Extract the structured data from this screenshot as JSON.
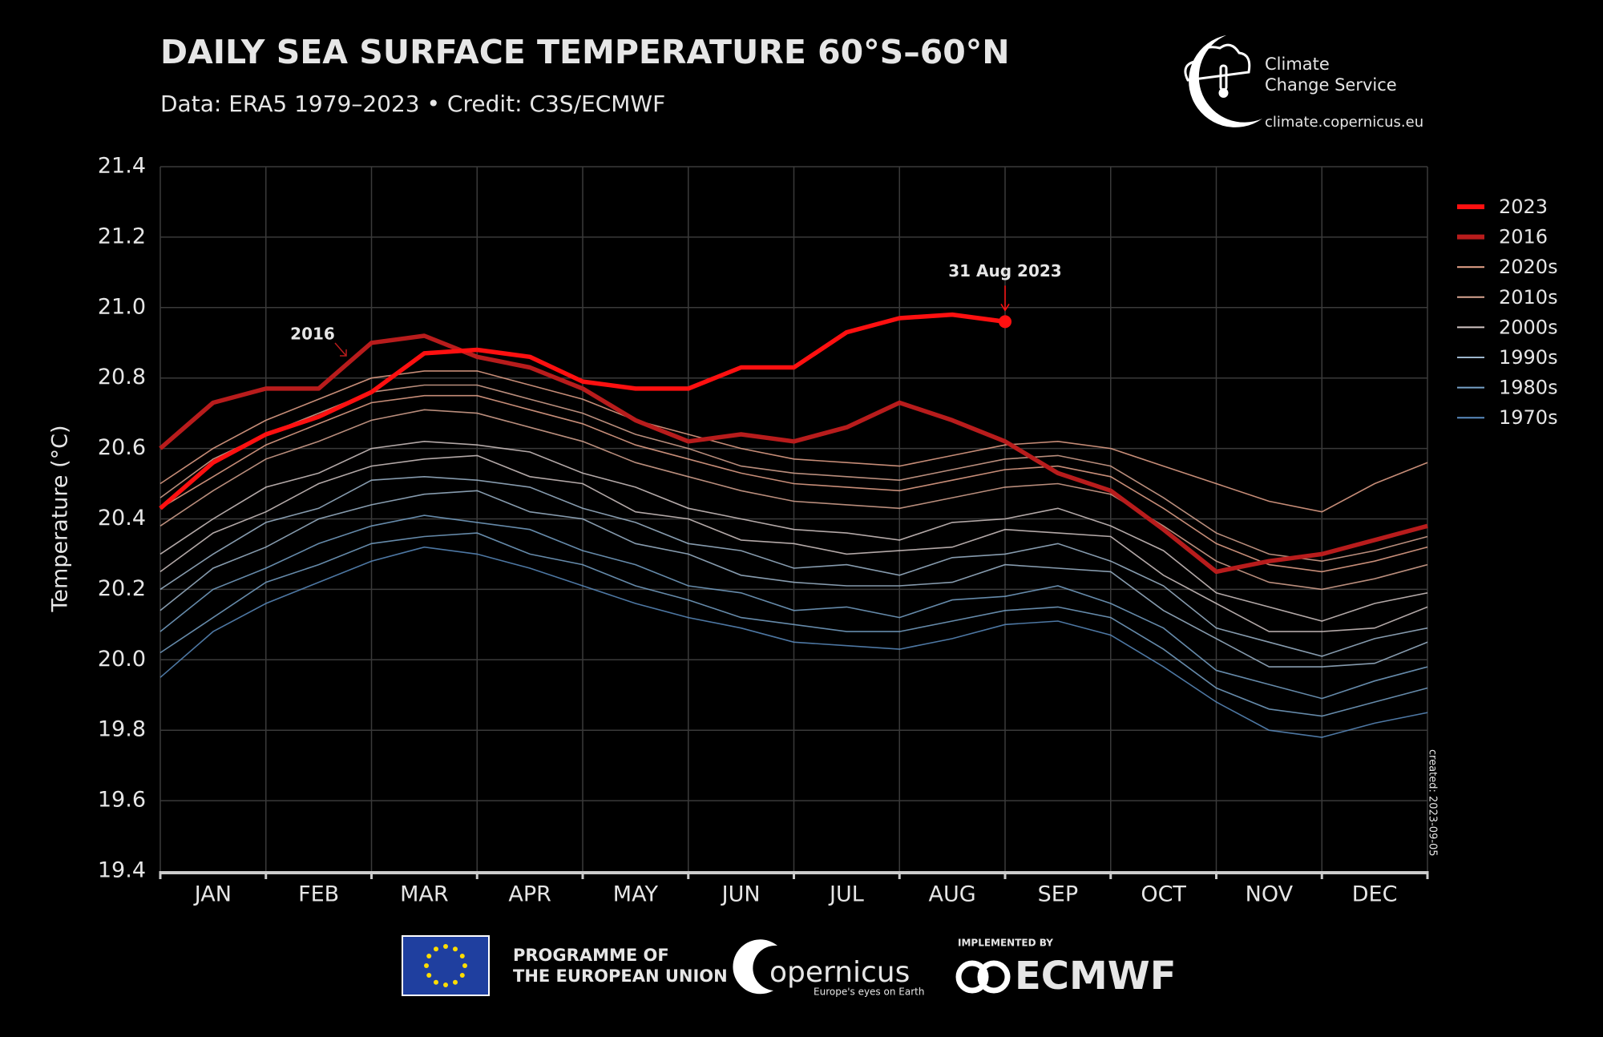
{
  "chart_data": {
    "type": "line",
    "title": "DAILY SEA SURFACE TEMPERATURE 60°S–60°N",
    "subtitle": "Data: ERA5 1979–2023 • Credit: C3S/ECMWF",
    "ylabel": "Temperature (°C)",
    "note": "created: 2023-09-05",
    "categories": [
      "JAN",
      "FEB",
      "MAR",
      "APR",
      "MAY",
      "JUN",
      "JUL",
      "AUG",
      "SEP",
      "OCT",
      "NOV",
      "DEC"
    ],
    "x": [
      0,
      0.5,
      1,
      1.5,
      2,
      2.5,
      3,
      3.5,
      4,
      4.5,
      5,
      5.5,
      6,
      6.5,
      7,
      7.5,
      8,
      8.5,
      9,
      9.5,
      10,
      10.5,
      11,
      11.5,
      12
    ],
    "xlim": [
      0,
      12
    ],
    "xticks": [
      0,
      1,
      2,
      3,
      4,
      5,
      6,
      7,
      8,
      9,
      10,
      11,
      12
    ],
    "ylim": [
      19.4,
      21.4
    ],
    "yticks": [
      19.4,
      19.6,
      19.8,
      {
        "value": 20,
        "label": "20.0"
      },
      20.2,
      20.4,
      20.6,
      20.8,
      {
        "value": 21,
        "label": "21.0"
      },
      21.2,
      21.4
    ],
    "grid": true,
    "legend": "right",
    "series": [
      {
        "name": "2023",
        "color": "#ff1010",
        "values": [
          20.43,
          20.56,
          20.64,
          20.69,
          20.76,
          20.87,
          20.88,
          20.86,
          20.79,
          20.77,
          20.77,
          20.83,
          20.83,
          20.93,
          20.97,
          20.98,
          20.96,
          null,
          null,
          null,
          null,
          null,
          null,
          null,
          null
        ]
      },
      {
        "name": "2016",
        "color": "#b81c1c",
        "values": [
          20.6,
          20.73,
          20.77,
          20.77,
          20.9,
          20.92,
          20.86,
          20.83,
          20.77,
          20.68,
          20.62,
          20.64,
          20.62,
          20.66,
          20.73,
          20.68,
          20.62,
          20.53,
          20.48,
          20.37,
          20.25,
          20.28,
          20.3,
          20.34,
          20.38
        ]
      },
      {
        "name": "2020s",
        "color": "#e9a58c",
        "lines": [
          [
            20.43,
            20.52,
            20.61,
            20.67,
            20.73,
            20.75,
            20.75,
            20.71,
            20.67,
            20.61,
            20.57,
            20.53,
            20.5,
            20.49,
            20.48,
            20.51,
            20.54,
            20.55,
            20.52,
            20.43,
            20.33,
            20.27,
            20.25,
            20.28,
            20.32
          ],
          [
            20.5,
            20.6,
            20.68,
            20.74,
            20.8,
            20.82,
            20.82,
            20.78,
            20.74,
            20.68,
            20.64,
            20.6,
            20.57,
            20.56,
            20.55,
            20.58,
            20.61,
            20.62,
            20.6,
            20.55,
            20.5,
            20.45,
            20.42,
            20.5,
            20.56
          ]
        ]
      },
      {
        "name": "2010s",
        "color": "#d9a692",
        "lines": [
          [
            20.38,
            20.48,
            20.57,
            20.62,
            20.68,
            20.71,
            20.7,
            20.66,
            20.62,
            20.56,
            20.52,
            20.48,
            20.45,
            20.44,
            20.43,
            20.46,
            20.49,
            20.5,
            20.47,
            20.38,
            20.28,
            20.22,
            20.2,
            20.23,
            20.27
          ],
          [
            20.46,
            20.57,
            20.64,
            20.7,
            20.76,
            20.78,
            20.78,
            20.74,
            20.7,
            20.64,
            20.6,
            20.55,
            20.53,
            20.52,
            20.51,
            20.54,
            20.57,
            20.58,
            20.55,
            20.46,
            20.36,
            20.3,
            20.28,
            20.31,
            20.35
          ]
        ]
      },
      {
        "name": "2000s",
        "color": "#d2c6c4",
        "lines": [
          [
            20.25,
            20.36,
            20.42,
            20.5,
            20.55,
            20.57,
            20.58,
            20.52,
            20.5,
            20.42,
            20.4,
            20.34,
            20.33,
            20.3,
            20.31,
            20.32,
            20.37,
            20.36,
            20.35,
            20.24,
            20.16,
            20.08,
            20.08,
            20.09,
            20.15
          ],
          [
            20.3,
            20.4,
            20.49,
            20.53,
            20.6,
            20.62,
            20.61,
            20.59,
            20.53,
            20.49,
            20.43,
            20.4,
            20.37,
            20.36,
            20.34,
            20.39,
            20.4,
            20.43,
            20.38,
            20.31,
            20.19,
            20.15,
            20.11,
            20.16,
            20.19
          ]
        ]
      },
      {
        "name": "1990s",
        "color": "#9db6cc",
        "lines": [
          [
            20.14,
            20.26,
            20.32,
            20.4,
            20.44,
            20.47,
            20.48,
            20.42,
            20.4,
            20.33,
            20.3,
            20.24,
            20.22,
            20.21,
            20.21,
            20.22,
            20.27,
            20.26,
            20.25,
            20.14,
            20.06,
            19.98,
            19.98,
            19.99,
            20.05
          ],
          [
            20.2,
            20.3,
            20.39,
            20.43,
            20.51,
            20.52,
            20.51,
            20.49,
            20.43,
            20.39,
            20.33,
            20.31,
            20.26,
            20.27,
            20.24,
            20.29,
            20.3,
            20.33,
            20.28,
            20.21,
            20.09,
            20.05,
            20.01,
            20.06,
            20.09
          ]
        ]
      },
      {
        "name": "1980s",
        "color": "#77a2c8",
        "lines": [
          [
            20.02,
            20.12,
            20.22,
            20.27,
            20.33,
            20.35,
            20.36,
            20.3,
            20.27,
            20.21,
            20.17,
            20.12,
            20.1,
            20.08,
            20.08,
            20.11,
            20.14,
            20.15,
            20.12,
            20.03,
            19.92,
            19.86,
            19.84,
            19.88,
            19.92
          ],
          [
            20.08,
            20.2,
            20.26,
            20.33,
            20.38,
            20.41,
            20.39,
            20.37,
            20.31,
            20.27,
            20.21,
            20.19,
            20.14,
            20.15,
            20.12,
            20.17,
            20.18,
            20.21,
            20.16,
            20.09,
            19.97,
            19.93,
            19.89,
            19.94,
            19.98
          ]
        ]
      },
      {
        "name": "1970s",
        "color": "#5a8cc0",
        "lines": [
          [
            19.95,
            20.08,
            20.16,
            20.22,
            20.28,
            20.32,
            20.3,
            20.26,
            20.21,
            20.16,
            20.12,
            20.09,
            20.05,
            20.04,
            20.03,
            20.06,
            20.1,
            20.11,
            20.07,
            19.98,
            19.88,
            19.8,
            19.78,
            19.82,
            19.85
          ]
        ]
      }
    ],
    "annotations": [
      {
        "series": 0,
        "text": "31 Aug 2023"
      },
      {
        "series": 1,
        "text": "2016"
      }
    ]
  },
  "branding": {
    "service_line1": "Climate",
    "service_line2": "Change Service",
    "url": "climate.copernicus.eu",
    "eu_line1": "PROGRAMME OF",
    "eu_line2": "THE EUROPEAN UNION",
    "copernicus": "opernicus",
    "copernicus_tagline": "Europe's eyes on Earth",
    "implemented_by": "IMPLEMENTED BY",
    "ecmwf": "ECMWF"
  }
}
